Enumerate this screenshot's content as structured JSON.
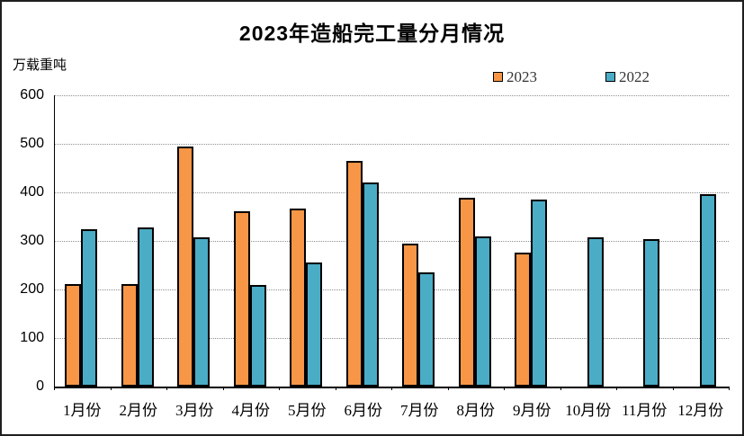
{
  "title": "2023年造船完工量分月情况",
  "y_axis_unit": "万载重吨",
  "colors": {
    "series_2023": "#F79646",
    "series_2022": "#4BACC6",
    "bar_border": "#000000",
    "gridline": "#8f8f8f",
    "frame_border": "#1f1f1f",
    "background": "#ffffff"
  },
  "chart_data": {
    "type": "bar",
    "title": "2023年造船完工量分月情况",
    "ylabel": "万载重吨",
    "categories": [
      "1月份",
      "2月份",
      "3月份",
      "4月份",
      "5月份",
      "6月份",
      "7月份",
      "8月份",
      "9月份",
      "10月份",
      "11月份",
      "12月份"
    ],
    "series": [
      {
        "name": "2023",
        "color": "#F79646",
        "values": [
          211,
          212,
          494,
          362,
          367,
          465,
          295,
          389,
          276,
          null,
          null,
          null
        ]
      },
      {
        "name": "2022",
        "color": "#4BACC6",
        "values": [
          325,
          327,
          307,
          210,
          256,
          421,
          235,
          310,
          386,
          308,
          304,
          397
        ]
      }
    ],
    "ylim": [
      0,
      600
    ],
    "yticks": [
      0,
      100,
      200,
      300,
      400,
      500,
      600
    ],
    "grid": true,
    "legend_position": "top-right"
  }
}
